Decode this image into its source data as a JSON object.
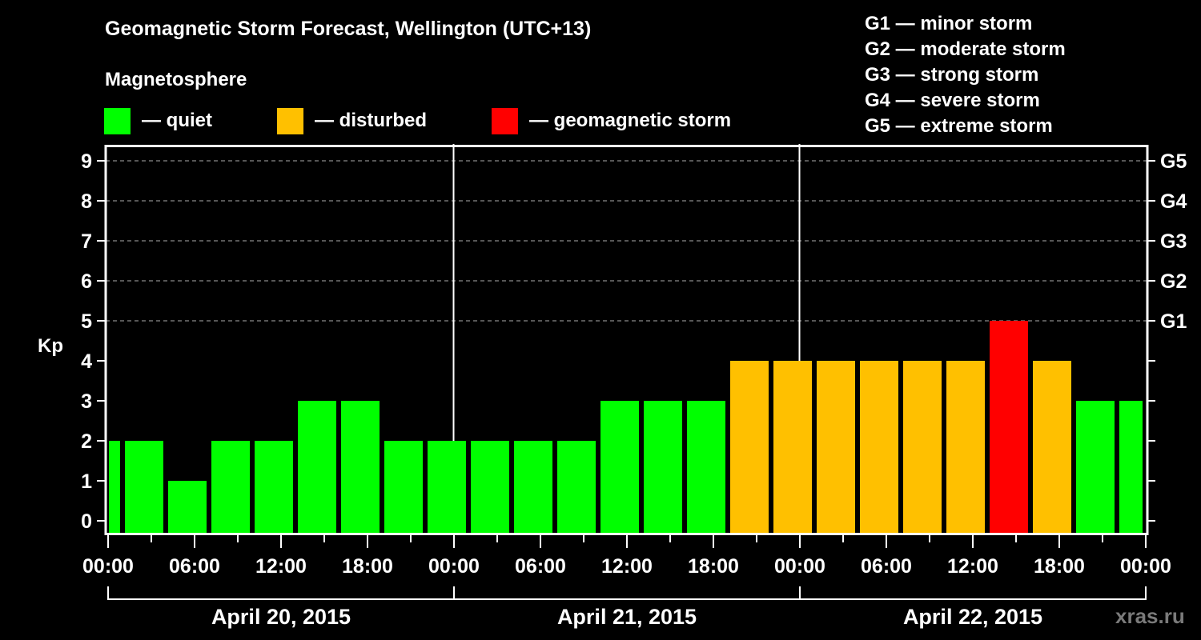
{
  "header": {
    "title": "Geomagnetic Storm Forecast, Wellington (UTC+13)",
    "subtitle": "Magnetosphere"
  },
  "legend": [
    {
      "label": "— quiet",
      "color": "#00ff00"
    },
    {
      "label": "— disturbed",
      "color": "#ffc000"
    },
    {
      "label": "— geomagnetic storm",
      "color": "#ff0000"
    }
  ],
  "storm_scale": [
    "G1 — minor storm",
    "G2 — moderate storm",
    "G3 — strong storm",
    "G4 — severe storm",
    "G5 — extreme storm"
  ],
  "watermark": "xras.ru",
  "colors": {
    "quiet": "#00ff00",
    "disturbed": "#ffc000",
    "storm": "#ff0000",
    "grid": "#8a8a8a",
    "axis": "#ffffff",
    "background": "#000000"
  },
  "chart_data": {
    "type": "bar",
    "title": "Geomagnetic Storm Forecast, Wellington (UTC+13)",
    "ylabel": "Kp",
    "xlabel": "",
    "ylim": [
      0,
      9
    ],
    "yticks": [
      0,
      1,
      2,
      3,
      4,
      5,
      6,
      7,
      8,
      9
    ],
    "right_axis_ticks": [
      {
        "kp": 5,
        "label": "G1"
      },
      {
        "kp": 6,
        "label": "G2"
      },
      {
        "kp": 7,
        "label": "G3"
      },
      {
        "kp": 8,
        "label": "G4"
      },
      {
        "kp": 9,
        "label": "G5"
      }
    ],
    "grid": "dashed horizontal lines at Kp 5-9",
    "xtick_labels": [
      "00:00",
      "06:00",
      "12:00",
      "18:00",
      "00:00",
      "06:00",
      "12:00",
      "18:00",
      "00:00",
      "06:00",
      "12:00",
      "18:00",
      "00:00"
    ],
    "days": [
      "April 20, 2015",
      "April 21, 2015",
      "April 22, 2015"
    ],
    "bar_interval_hours": 3,
    "bar_offset_hours": 1,
    "bars": [
      {
        "start": "Apr 20 00:00",
        "end": "Apr 20 01:00",
        "kp": 2,
        "level": "quiet"
      },
      {
        "start": "Apr 20 01:00",
        "end": "Apr 20 04:00",
        "kp": 2,
        "level": "quiet"
      },
      {
        "start": "Apr 20 04:00",
        "end": "Apr 20 07:00",
        "kp": 1,
        "level": "quiet"
      },
      {
        "start": "Apr 20 07:00",
        "end": "Apr 20 10:00",
        "kp": 2,
        "level": "quiet"
      },
      {
        "start": "Apr 20 10:00",
        "end": "Apr 20 13:00",
        "kp": 2,
        "level": "quiet"
      },
      {
        "start": "Apr 20 13:00",
        "end": "Apr 20 16:00",
        "kp": 3,
        "level": "quiet"
      },
      {
        "start": "Apr 20 16:00",
        "end": "Apr 20 19:00",
        "kp": 3,
        "level": "quiet"
      },
      {
        "start": "Apr 20 19:00",
        "end": "Apr 20 22:00",
        "kp": 2,
        "level": "quiet"
      },
      {
        "start": "Apr 20 22:00",
        "end": "Apr 21 01:00",
        "kp": 2,
        "level": "quiet"
      },
      {
        "start": "Apr 21 01:00",
        "end": "Apr 21 04:00",
        "kp": 2,
        "level": "quiet"
      },
      {
        "start": "Apr 21 04:00",
        "end": "Apr 21 07:00",
        "kp": 2,
        "level": "quiet"
      },
      {
        "start": "Apr 21 07:00",
        "end": "Apr 21 10:00",
        "kp": 2,
        "level": "quiet"
      },
      {
        "start": "Apr 21 10:00",
        "end": "Apr 21 13:00",
        "kp": 3,
        "level": "quiet"
      },
      {
        "start": "Apr 21 13:00",
        "end": "Apr 21 16:00",
        "kp": 3,
        "level": "quiet"
      },
      {
        "start": "Apr 21 16:00",
        "end": "Apr 21 19:00",
        "kp": 3,
        "level": "quiet"
      },
      {
        "start": "Apr 21 19:00",
        "end": "Apr 21 22:00",
        "kp": 4,
        "level": "disturbed"
      },
      {
        "start": "Apr 21 22:00",
        "end": "Apr 22 01:00",
        "kp": 4,
        "level": "disturbed"
      },
      {
        "start": "Apr 22 01:00",
        "end": "Apr 22 04:00",
        "kp": 4,
        "level": "disturbed"
      },
      {
        "start": "Apr 22 04:00",
        "end": "Apr 22 07:00",
        "kp": 4,
        "level": "disturbed"
      },
      {
        "start": "Apr 22 07:00",
        "end": "Apr 22 10:00",
        "kp": 4,
        "level": "disturbed"
      },
      {
        "start": "Apr 22 10:00",
        "end": "Apr 22 13:00",
        "kp": 4,
        "level": "disturbed"
      },
      {
        "start": "Apr 22 13:00",
        "end": "Apr 22 16:00",
        "kp": 5,
        "level": "storm"
      },
      {
        "start": "Apr 22 16:00",
        "end": "Apr 22 19:00",
        "kp": 4,
        "level": "disturbed"
      },
      {
        "start": "Apr 22 19:00",
        "end": "Apr 22 22:00",
        "kp": 3,
        "level": "quiet"
      },
      {
        "start": "Apr 22 22:00",
        "end": "Apr 23 00:00",
        "kp": 3,
        "level": "quiet"
      }
    ],
    "values": [
      2,
      2,
      1,
      2,
      2,
      3,
      3,
      2,
      2,
      2,
      2,
      2,
      3,
      3,
      3,
      4,
      4,
      4,
      4,
      4,
      4,
      5,
      4,
      3,
      3
    ]
  }
}
